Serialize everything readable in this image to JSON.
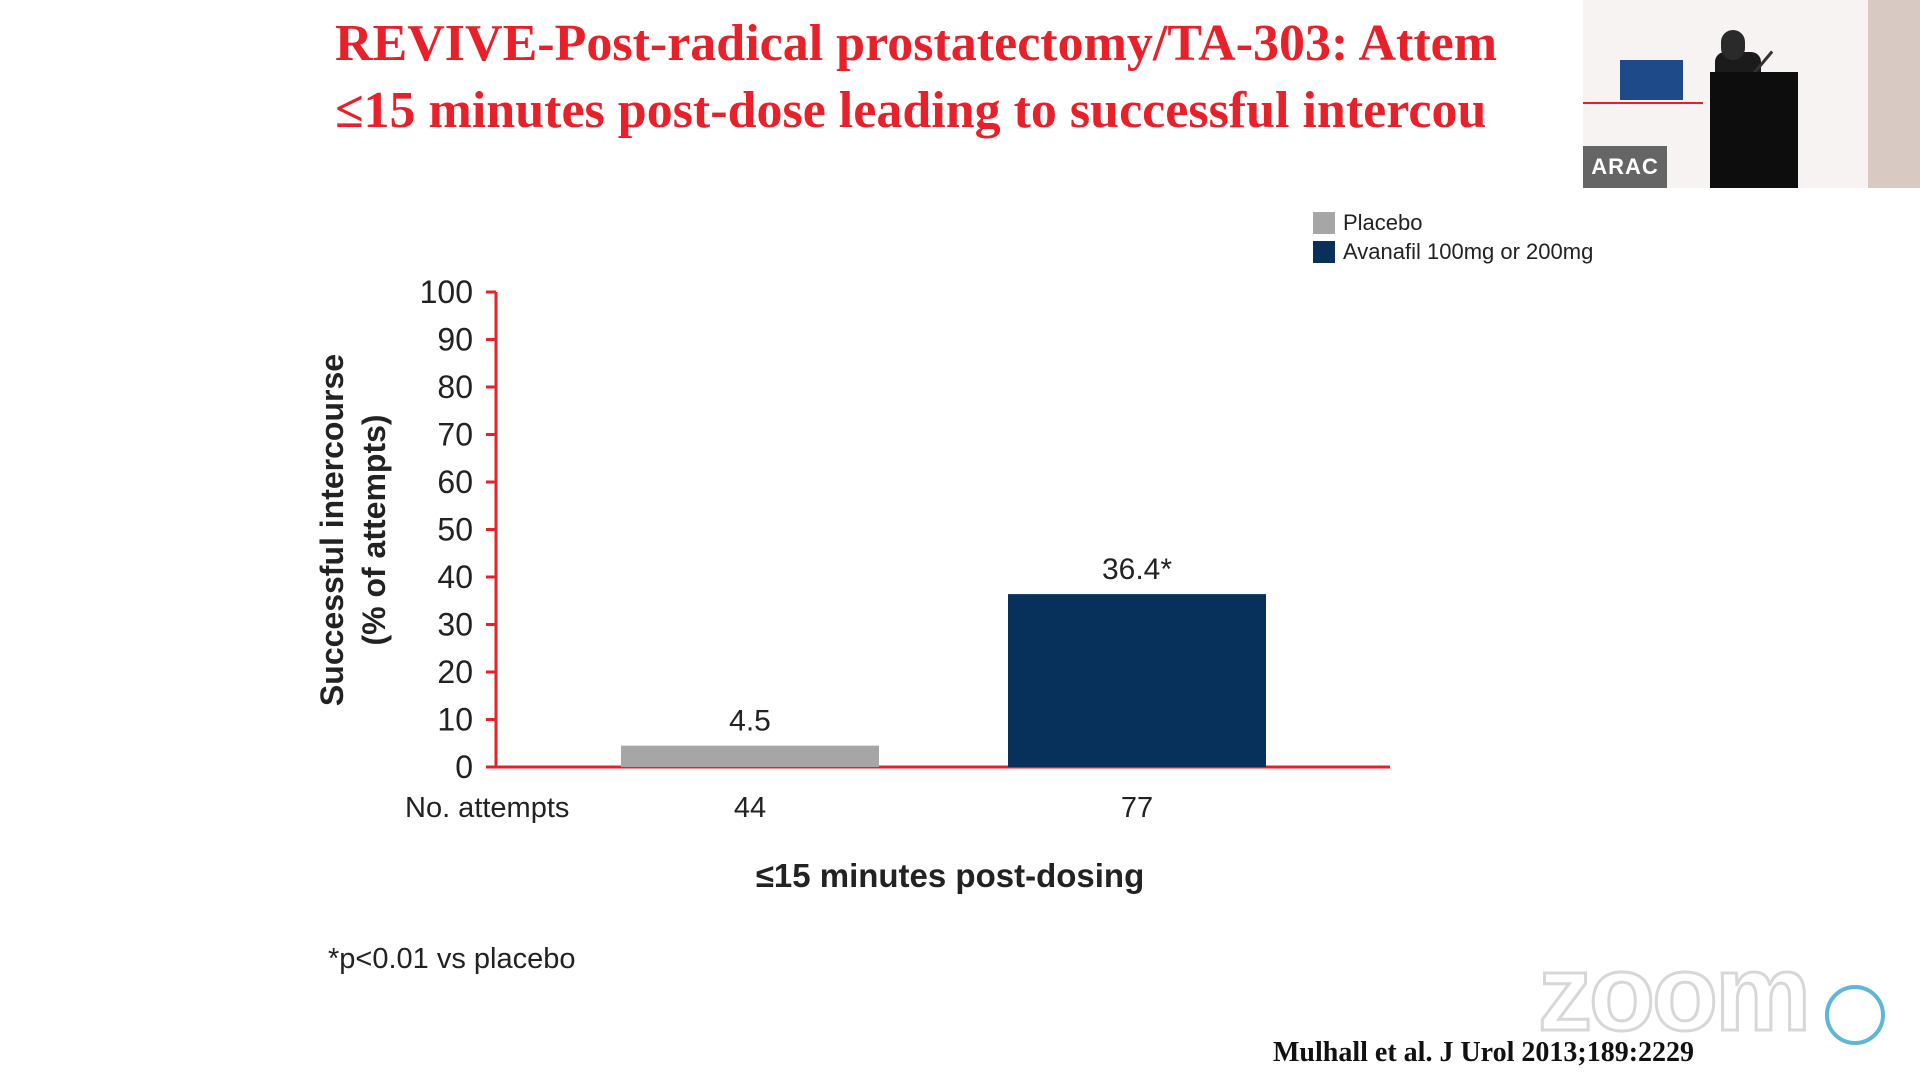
{
  "slide": {
    "title_line1": "REVIVE-Post-radical prostatectomy/TA-303: Attem",
    "title_line2": "≤15 minutes post-dose leading to successful intercou",
    "footnote": "*p<0.01 vs placebo",
    "citation": "Mulhall et al. J Urol 2013;189:2229"
  },
  "video_tile": {
    "participant_name": "ARAC"
  },
  "watermark": {
    "text": "zoom"
  },
  "colors": {
    "title": "#e8202a",
    "axis": "#e8202a",
    "placebo": "#a6a6a6",
    "avanafil": "#07305a"
  },
  "chart_data": {
    "type": "bar",
    "ylabel": "Successful intercourse\n(% of attempts)",
    "xlabel": "≤15 minutes post-dosing",
    "ylim": [
      0,
      100
    ],
    "yticks": [
      0,
      10,
      20,
      30,
      40,
      50,
      60,
      70,
      80,
      90,
      100
    ],
    "legend_position": "top-right",
    "series": [
      {
        "name": "Placebo",
        "value": 4.5,
        "label": "4.5",
        "attempts": "44",
        "color": "#a6a6a6"
      },
      {
        "name": "Avanafil 100mg or 200mg",
        "value": 36.4,
        "label": "36.4*",
        "attempts": "77",
        "color": "#07305a"
      }
    ],
    "attempts_label": "No. attempts",
    "grid": false
  }
}
